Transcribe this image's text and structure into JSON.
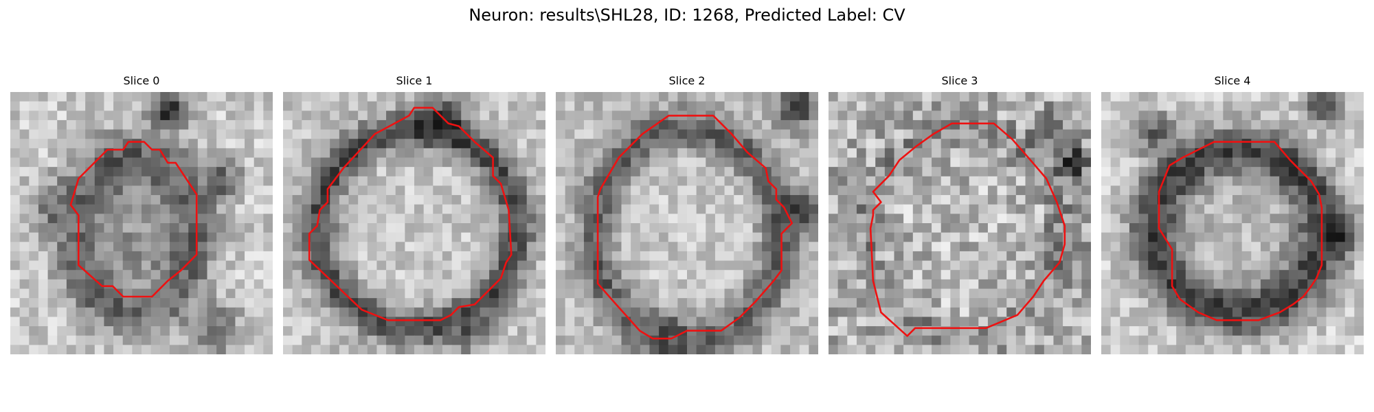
{
  "figure": {
    "title": "Neuron: results\\SHL28, ID: 1268, Predicted Label: CV"
  },
  "panels": [
    {
      "title": "Slice 0",
      "contour_color": "#ee1111"
    },
    {
      "title": "Slice 1",
      "contour_color": "#ee1111"
    },
    {
      "title": "Slice 2",
      "contour_color": "#ee1111"
    },
    {
      "title": "Slice 3",
      "contour_color": "#ee1111"
    },
    {
      "title": "Slice 4",
      "contour_color": "#ee1111"
    }
  ]
}
